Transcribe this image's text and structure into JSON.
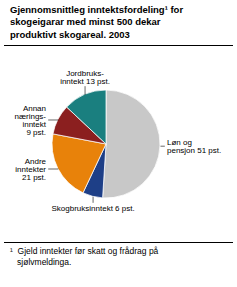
{
  "chart_data": {
    "type": "pie",
    "title": "Gjennomsnittleg inntektsfordeling¹ for\nskogeigarar med minst 500 dekar\nproduktivt skogareal. 2003",
    "categories": [
      "Løn og\npensjon 51 pst.",
      "Skogbruksinntekt 6 pst.",
      "Andre\ninntekter\n21 pst.",
      "Annan\nnærings-\ninntekt\n9 pst.",
      "Jordbruks-\ninntekt 13 pst."
    ],
    "values": [
      51,
      6,
      21,
      9,
      13
    ],
    "colors": [
      "#c8c8c8",
      "#1e3f87",
      "#e8820a",
      "#8b1f1f",
      "#1a7f7f"
    ],
    "annotations": [
      "¹  Gjeld inntekter før skatt og frådrag på\n   sjølvmeldinga."
    ]
  }
}
